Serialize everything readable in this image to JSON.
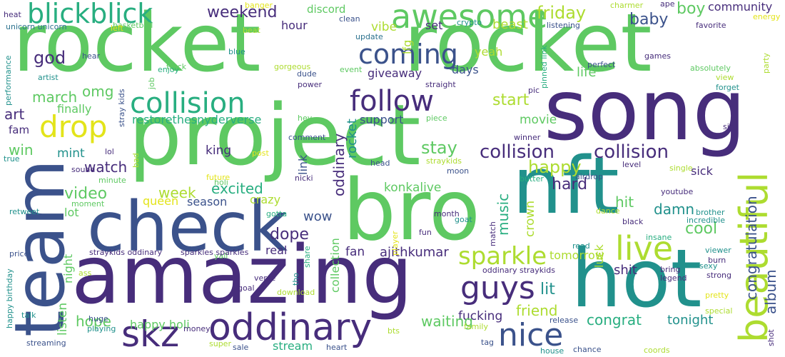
{
  "palette": {
    "purple": "#472d7b",
    "navy": "#3b528b",
    "blue": "#2c728e",
    "teal": "#21918c",
    "sea": "#28ae80",
    "green": "#5ec962",
    "lime": "#addc30",
    "yellow": "#e3e41a"
  },
  "words": [
    "rocket",
    "rocket",
    "song",
    "project",
    "amazing",
    "nft",
    "hot",
    "bro",
    "team",
    "check",
    "awesome",
    "blickblick",
    "collision",
    "follow",
    "beautiful",
    "skz",
    "oddinary",
    "coming",
    "drop",
    "nice",
    "live",
    "guys",
    "sparkle",
    "collision",
    "collision",
    "congratulation",
    "album",
    "weekend",
    "friday",
    "boy",
    "community",
    "discord",
    "god",
    "omg",
    "march",
    "art",
    "finally",
    "fam",
    "restorethesnyderverse",
    "start",
    "support",
    "movie",
    "happy",
    "stay",
    "watch",
    "mint",
    "win",
    "video",
    "week",
    "excited",
    "king",
    "link",
    "konkalive",
    "hard",
    "sick",
    "hit",
    "damn",
    "cool",
    "music",
    "crown",
    "dope",
    "wow",
    "season",
    "crazy",
    "queen",
    "lot",
    "night",
    "rocket",
    "collection",
    "oddinary",
    "ajithkumar",
    "fan",
    "real",
    "shit",
    "lit",
    "friend",
    "tomorrow",
    "luck",
    "fucking",
    "waiting",
    "congrat",
    "tonight",
    "hope",
    "happy holi",
    "stream",
    "listen",
    "giveaway",
    "days",
    "yeah",
    "life",
    "vibe",
    "lfg",
    "set",
    "hour",
    "beast",
    "baby",
    "favorite",
    "energy",
    "unicorn unicorn",
    "heat",
    "basketball",
    "left",
    "clean",
    "banger",
    "charmer",
    "ape",
    "crypto",
    "update",
    "beat",
    "listening",
    "games",
    "perfect",
    "pinned link",
    "absolutely",
    "party",
    "view",
    "forget",
    "hear",
    "enjoy",
    "blue",
    "gorgeous",
    "dude",
    "event",
    "power",
    "straight",
    "job",
    "track",
    "artist",
    "performance",
    "stray kids",
    "pic",
    "hey",
    "piece",
    "comment",
    "winner",
    "sir",
    "true",
    "lol",
    "sound",
    "minute",
    "bad",
    "moment",
    "retweet",
    "price",
    "holi",
    "future",
    "nicki",
    "post",
    "head",
    "straykids",
    "moon",
    "butter",
    "airdrop",
    "level",
    "single",
    "youtube",
    "dance",
    "black",
    "brother",
    "incredible",
    "insane",
    "viewer",
    "burn",
    "strong",
    "pretty",
    "special",
    "shot",
    "legend",
    "bring",
    "read",
    "release",
    "oddinary straykids",
    "sexy",
    "goat",
    "match",
    "month",
    "player",
    "fun",
    "gotta",
    "yall",
    "share",
    "tho",
    "verse",
    "goal",
    "download",
    "straykids oddinary",
    "sparkles sparkles",
    "happy birthday",
    "talk",
    "ass",
    "huge",
    "playing",
    "money",
    "streaming",
    "super",
    "sale",
    "heart",
    "bts",
    "family",
    "tag",
    "house",
    "chance",
    "coords"
  ]
}
